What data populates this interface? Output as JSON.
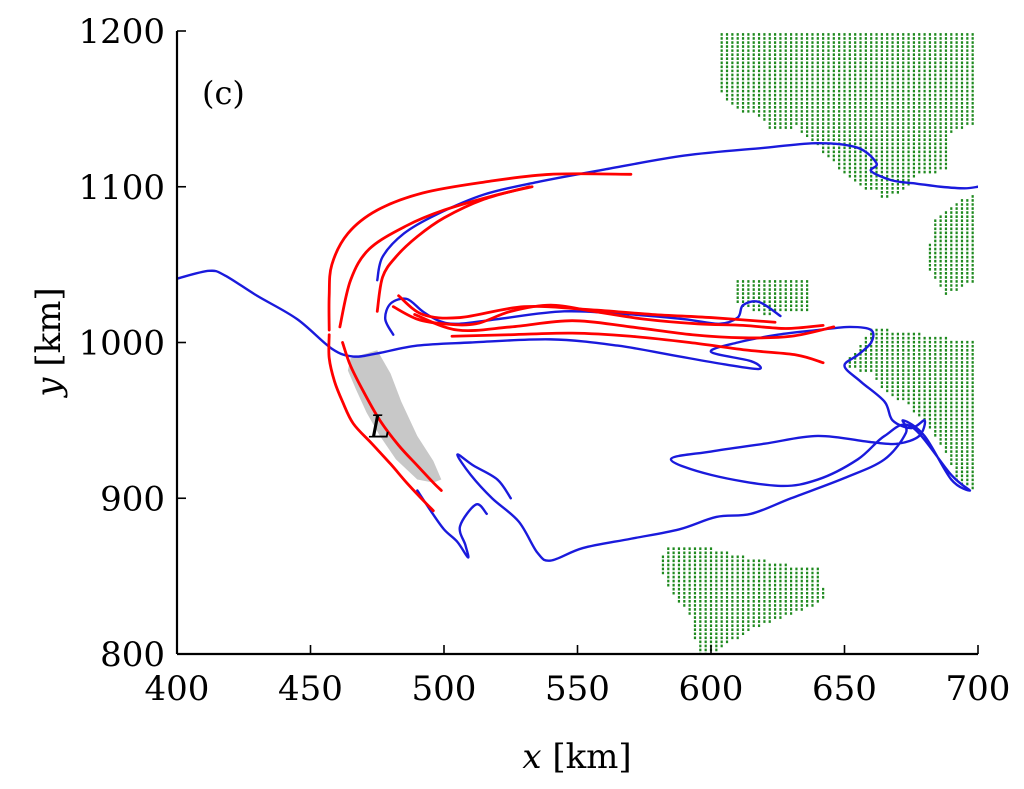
{
  "chart_data": {
    "type": "line",
    "panel_label": "(c)",
    "xlabel": {
      "var": "x",
      "unit": "[km]"
    },
    "ylabel": {
      "var": "y",
      "unit": "[km]"
    },
    "xlim": [
      400,
      700
    ],
    "ylim": [
      800,
      1200
    ],
    "xticks": [
      "400",
      "450",
      "500",
      "550",
      "600",
      "650",
      "700"
    ],
    "yticks": [
      "800",
      "900",
      "1000",
      "1100",
      "1200"
    ],
    "grid": false,
    "colors": {
      "blue_curve": "#1a1adc",
      "red_curves": "#ff0000",
      "green_dots": "#1f8a1f",
      "shaded_region": "#c8c8c8"
    },
    "shaded_region": {
      "label": "L",
      "label_at": [
        472,
        946
      ],
      "points": [
        [
          465,
          990
        ],
        [
          475,
          995
        ],
        [
          480,
          980
        ],
        [
          484,
          962
        ],
        [
          490,
          940
        ],
        [
          496,
          924
        ],
        [
          499,
          912
        ],
        [
          496,
          910
        ],
        [
          490,
          912
        ],
        [
          482,
          925
        ],
        [
          476,
          940
        ],
        [
          471,
          955
        ],
        [
          467,
          970
        ],
        [
          464,
          982
        ]
      ]
    },
    "series": [
      {
        "color": "blue_curve",
        "points": [
          [
            400,
            1041
          ],
          [
            412,
            1046
          ],
          [
            418,
            1043
          ],
          [
            430,
            1030
          ],
          [
            445,
            1015
          ],
          [
            458,
            996
          ],
          [
            466,
            991
          ],
          [
            475,
            993
          ],
          [
            490,
            998
          ],
          [
            510,
            1000
          ],
          [
            540,
            1002
          ],
          [
            565,
            998
          ],
          [
            585,
            992
          ],
          [
            605,
            986
          ],
          [
            618,
            983
          ],
          [
            615,
            988
          ],
          [
            600,
            994
          ],
          [
            610,
            1000
          ],
          [
            625,
            1005
          ],
          [
            640,
            1008
          ],
          [
            652,
            1010
          ],
          [
            660,
            1008
          ],
          [
            660,
            1000
          ],
          [
            655,
            992
          ],
          [
            650,
            985
          ],
          [
            656,
            975
          ],
          [
            665,
            962
          ],
          [
            668,
            950
          ],
          [
            675,
            945
          ],
          [
            680,
            950
          ],
          [
            678,
            940
          ],
          [
            670,
            935
          ],
          [
            660,
            936
          ],
          [
            640,
            940
          ],
          [
            620,
            935
          ],
          [
            600,
            930
          ],
          [
            585,
            925
          ],
          [
            600,
            915
          ],
          [
            625,
            908
          ],
          [
            640,
            912
          ],
          [
            655,
            925
          ],
          [
            665,
            940
          ],
          [
            675,
            946
          ],
          [
            690,
            915
          ],
          [
            697,
            905
          ],
          [
            690,
            912
          ],
          [
            680,
            940
          ],
          [
            672,
            950
          ],
          [
            673,
            942
          ],
          [
            665,
            925
          ],
          [
            650,
            913
          ],
          [
            630,
            900
          ],
          [
            615,
            890
          ],
          [
            602,
            888
          ],
          [
            588,
            880
          ],
          [
            570,
            874
          ],
          [
            552,
            868
          ],
          [
            540,
            860
          ],
          [
            535,
            865
          ],
          [
            528,
            885
          ],
          [
            518,
            900
          ],
          [
            510,
            915
          ],
          [
            505,
            928
          ],
          [
            511,
            921
          ],
          [
            520,
            912
          ],
          [
            525,
            900
          ]
        ]
      },
      {
        "color": "blue_curve",
        "points": [
          [
            475,
            1040
          ],
          [
            477,
            1055
          ],
          [
            485,
            1070
          ],
          [
            497,
            1082
          ],
          [
            515,
            1095
          ],
          [
            535,
            1103
          ],
          [
            560,
            1111
          ],
          [
            590,
            1120
          ],
          [
            620,
            1125
          ],
          [
            640,
            1128
          ],
          [
            655,
            1125
          ],
          [
            662,
            1115
          ],
          [
            660,
            1110
          ],
          [
            668,
            1104
          ],
          [
            677,
            1102
          ],
          [
            686,
            1100
          ],
          [
            695,
            1099
          ],
          [
            700,
            1100
          ]
        ]
      },
      {
        "color": "blue_curve",
        "points": [
          [
            481,
            1005
          ],
          [
            478,
            1015
          ],
          [
            480,
            1025
          ],
          [
            486,
            1028
          ],
          [
            492,
            1020
          ],
          [
            498,
            1014
          ],
          [
            505,
            1012
          ],
          [
            520,
            1015
          ],
          [
            545,
            1020
          ],
          [
            570,
            1018
          ],
          [
            590,
            1015
          ],
          [
            603,
            1012
          ],
          [
            610,
            1016
          ],
          [
            612,
            1024
          ],
          [
            618,
            1026
          ],
          [
            626,
            1017
          ]
        ]
      },
      {
        "color": "blue_curve",
        "points": [
          [
            490,
            905
          ],
          [
            495,
            892
          ],
          [
            500,
            880
          ],
          [
            505,
            872
          ],
          [
            509,
            862
          ],
          [
            508,
            870
          ],
          [
            506,
            882
          ],
          [
            512,
            896
          ],
          [
            516,
            890
          ]
        ]
      },
      {
        "color": "red_curves",
        "points": [
          [
            457,
            1008
          ],
          [
            457,
            1030
          ],
          [
            458,
            1050
          ],
          [
            464,
            1070
          ],
          [
            475,
            1085
          ],
          [
            492,
            1096
          ],
          [
            515,
            1103
          ],
          [
            540,
            1108
          ],
          [
            570,
            1108
          ]
        ]
      },
      {
        "color": "red_curves",
        "points": [
          [
            461,
            1010
          ],
          [
            465,
            1040
          ],
          [
            472,
            1060
          ],
          [
            486,
            1075
          ],
          [
            500,
            1085
          ],
          [
            518,
            1094
          ],
          [
            533,
            1100
          ]
        ]
      },
      {
        "color": "red_curves",
        "points": [
          [
            475,
            1020
          ],
          [
            477,
            1042
          ],
          [
            482,
            1055
          ],
          [
            490,
            1068
          ],
          [
            500,
            1080
          ],
          [
            515,
            1092
          ],
          [
            532,
            1100
          ]
        ]
      },
      {
        "color": "red_curves",
        "points": [
          [
            457,
            1005
          ],
          [
            457,
            990
          ],
          [
            459,
            975
          ],
          [
            462,
            962
          ],
          [
            466,
            948
          ],
          [
            473,
            935
          ],
          [
            480,
            922
          ],
          [
            486,
            910
          ],
          [
            492,
            899
          ],
          [
            496,
            892
          ]
        ]
      },
      {
        "color": "red_curves",
        "points": [
          [
            462,
            1000
          ],
          [
            465,
            985
          ],
          [
            470,
            968
          ],
          [
            476,
            950
          ],
          [
            483,
            934
          ],
          [
            490,
            921
          ],
          [
            496,
            910
          ],
          [
            499,
            905
          ]
        ]
      },
      {
        "color": "red_curves",
        "points": [
          [
            481,
            1023
          ],
          [
            490,
            1015
          ],
          [
            500,
            1012
          ],
          [
            512,
            1012
          ],
          [
            525,
            1020
          ],
          [
            540,
            1024
          ],
          [
            556,
            1020
          ],
          [
            575,
            1015
          ],
          [
            595,
            1012
          ],
          [
            612,
            1011
          ],
          [
            628,
            1009
          ],
          [
            642,
            1011
          ]
        ]
      },
      {
        "color": "red_curves",
        "points": [
          [
            489,
            1018
          ],
          [
            505,
            1008
          ],
          [
            525,
            1010
          ],
          [
            548,
            1014
          ],
          [
            570,
            1010
          ],
          [
            593,
            1005
          ],
          [
            612,
            1003
          ],
          [
            630,
            1004
          ],
          [
            646,
            1010
          ]
        ]
      },
      {
        "color": "red_curves",
        "points": [
          [
            503,
            1004
          ],
          [
            525,
            1005
          ],
          [
            548,
            1006
          ],
          [
            570,
            1004
          ],
          [
            592,
            1000
          ],
          [
            614,
            995
          ],
          [
            632,
            992
          ],
          [
            642,
            987
          ]
        ]
      },
      {
        "color": "red_curves",
        "points": [
          [
            483,
            1030
          ],
          [
            492,
            1018
          ],
          [
            506,
            1016
          ],
          [
            530,
            1023
          ],
          [
            555,
            1021
          ],
          [
            578,
            1018
          ],
          [
            600,
            1016
          ],
          [
            624,
            1013
          ]
        ]
      }
    ],
    "dot_regions": [
      {
        "color": "green_dots",
        "points": [
          [
            602,
            1200
          ],
          [
            700,
            1200
          ],
          [
            700,
            1140
          ],
          [
            690,
            1135
          ],
          [
            688,
            1110
          ],
          [
            678,
            1108
          ],
          [
            670,
            1095
          ],
          [
            665,
            1092
          ],
          [
            662,
            1097
          ],
          [
            655,
            1100
          ],
          [
            640,
            1125
          ],
          [
            632,
            1138
          ],
          [
            622,
            1137
          ],
          [
            618,
            1145
          ],
          [
            609,
            1150
          ],
          [
            603,
            1162
          ]
        ]
      },
      {
        "color": "green_dots",
        "points": [
          [
            684,
            1080
          ],
          [
            700,
            1098
          ],
          [
            700,
            1040
          ],
          [
            688,
            1030
          ],
          [
            680,
            1050
          ]
        ]
      },
      {
        "color": "green_dots",
        "points": [
          [
            660,
            1010
          ],
          [
            700,
            1000
          ],
          [
            700,
            905
          ],
          [
            692,
            910
          ],
          [
            688,
            930
          ],
          [
            680,
            950
          ],
          [
            672,
            962
          ],
          [
            665,
            968
          ],
          [
            660,
            980
          ],
          [
            650,
            985
          ]
        ]
      },
      {
        "color": "green_dots",
        "points": [
          [
            608,
            1040
          ],
          [
            637,
            1040
          ],
          [
            637,
            1020
          ],
          [
            620,
            1018
          ],
          [
            610,
            1025
          ]
        ]
      },
      {
        "color": "green_dots",
        "points": [
          [
            584,
            870
          ],
          [
            600,
            868
          ],
          [
            615,
            862
          ],
          [
            625,
            858
          ],
          [
            640,
            855
          ],
          [
            643,
            835
          ],
          [
            634,
            828
          ],
          [
            625,
            822
          ],
          [
            615,
            815
          ],
          [
            608,
            808
          ],
          [
            600,
            800
          ],
          [
            595,
            800
          ],
          [
            592,
            825
          ],
          [
            585,
            840
          ],
          [
            580,
            860
          ]
        ]
      }
    ]
  }
}
